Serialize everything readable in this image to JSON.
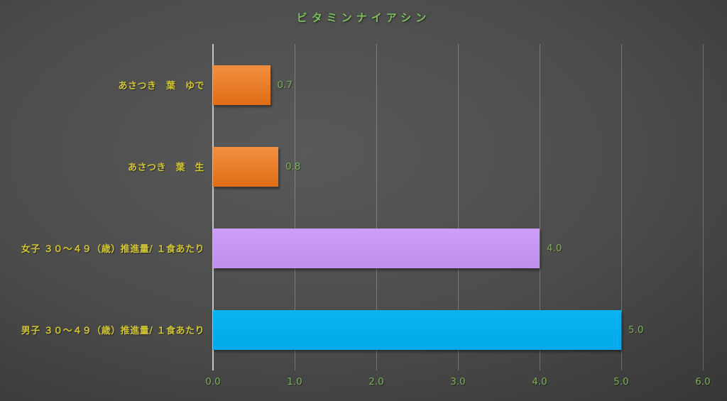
{
  "chart_data": {
    "type": "bar",
    "orientation": "horizontal",
    "title": "ビタミンナイアシン",
    "categories": [
      "あさつき　葉　ゆで",
      "あさつき　葉　生",
      "女子 ３０～４９（歳）推進量/ １食あたり",
      "男子 ３０～４９（歳）推進量/ １食あたり"
    ],
    "values": [
      0.7,
      0.8,
      4.0,
      5.0
    ],
    "value_labels": [
      "0.7",
      "0.8",
      "4.0",
      "5.0"
    ],
    "xlabel": "",
    "ylabel": "",
    "xlim": [
      0,
      6
    ],
    "x_tick_labels": [
      "0.0",
      "1.0",
      "2.0",
      "3.0",
      "4.0",
      "5.0",
      "6.0"
    ],
    "grid": true,
    "legend": false,
    "bar_colors": [
      "#ED7D31",
      "#ED7D31",
      "#C89BF5",
      "#00B0F0"
    ],
    "bar_gradients": [
      [
        "#F28F40",
        "#E06D15"
      ],
      [
        "#F28F40",
        "#E06D15"
      ],
      [
        "#CC9EF9",
        "#BE8FEC"
      ],
      [
        "#0AB4F1",
        "#00A9E8"
      ]
    ]
  },
  "colors": {
    "background_center": "#595959",
    "background_edge": "#242424",
    "title_text": "#7CBE5B",
    "category_label_text": "#D1C52F",
    "value_label_text": "#79B053",
    "axis_tick_text": "#79B053",
    "axis_line": "#C4C4C4",
    "gridline": "rgba(255,255,255,0.24)"
  }
}
